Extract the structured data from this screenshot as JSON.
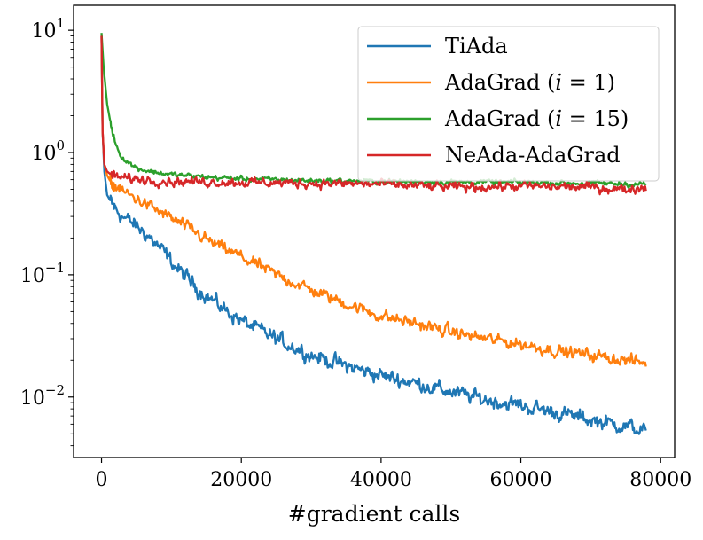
{
  "chart_data": {
    "type": "line",
    "title": "",
    "xlabel": "#gradient calls",
    "ylabel": "",
    "xlim": [
      -4000,
      82000
    ],
    "ylim": [
      0.0032,
      16
    ],
    "yscale": "log",
    "grid": false,
    "legend_position": "top-right",
    "x_ticks": [
      0,
      20000,
      40000,
      60000,
      80000
    ],
    "x_tick_labels": [
      "0",
      "20000",
      "40000",
      "60000",
      "80000"
    ],
    "y_ticks": [
      0.01,
      0.1,
      1,
      10
    ],
    "y_tick_bases": [
      "10",
      "10",
      "10",
      "10"
    ],
    "y_tick_exponents": [
      "−2",
      "−1",
      "0",
      "1"
    ],
    "series": [
      {
        "name": "TiAda",
        "color": "#1f77b4",
        "noise": 0.1,
        "x": [
          0,
          150,
          400,
          800,
          1500,
          3000,
          5000,
          7000,
          9000,
          11000,
          14000,
          17000,
          20000,
          25000,
          30000,
          35000,
          40000,
          45000,
          50000,
          55000,
          60000,
          65000,
          70000,
          75000,
          78000
        ],
        "values": [
          9.0,
          1.5,
          0.7,
          0.45,
          0.38,
          0.3,
          0.25,
          0.2,
          0.15,
          0.11,
          0.075,
          0.055,
          0.042,
          0.03,
          0.022,
          0.018,
          0.015,
          0.013,
          0.011,
          0.0095,
          0.0085,
          0.0075,
          0.0065,
          0.0058,
          0.0052
        ]
      },
      {
        "name": "AdaGrad (i = 1)",
        "name_main": "AdaGrad (",
        "name_var": "i",
        "name_rest": " = 1)",
        "color": "#ff7f0e",
        "noise": 0.08,
        "x": [
          0,
          150,
          400,
          800,
          1500,
          3000,
          5000,
          7000,
          10000,
          13000,
          16000,
          20000,
          25000,
          30000,
          35000,
          40000,
          45000,
          50000,
          55000,
          60000,
          65000,
          70000,
          75000,
          78000
        ],
        "values": [
          9.0,
          1.5,
          0.8,
          0.65,
          0.55,
          0.48,
          0.42,
          0.36,
          0.29,
          0.23,
          0.18,
          0.14,
          0.1,
          0.075,
          0.058,
          0.046,
          0.04,
          0.034,
          0.03,
          0.027,
          0.024,
          0.022,
          0.02,
          0.019
        ]
      },
      {
        "name": "AdaGrad (i = 15)",
        "name_main": "AdaGrad (",
        "name_var": "i",
        "name_rest": " = 15)",
        "color": "#2ca02c",
        "noise": 0.035,
        "x": [
          0,
          300,
          800,
          1500,
          2500,
          3500,
          5000,
          7000,
          10000,
          15000,
          20000,
          25000,
          30000,
          35000,
          40000,
          50000,
          60000,
          70000,
          78000
        ],
        "values": [
          9.5,
          5.0,
          2.5,
          1.5,
          1.0,
          0.85,
          0.75,
          0.7,
          0.66,
          0.63,
          0.61,
          0.6,
          0.59,
          0.585,
          0.58,
          0.575,
          0.57,
          0.56,
          0.55
        ]
      },
      {
        "name": "NeAda-AdaGrad",
        "color": "#d62728",
        "noise": 0.06,
        "x": [
          0,
          150,
          400,
          800,
          1500,
          3000,
          10000,
          20000,
          30000,
          40000,
          50000,
          60000,
          70000,
          75000,
          78000
        ],
        "values": [
          9.0,
          1.5,
          0.8,
          0.7,
          0.65,
          0.62,
          0.58,
          0.57,
          0.56,
          0.55,
          0.52,
          0.53,
          0.52,
          0.5,
          0.52
        ]
      }
    ]
  }
}
